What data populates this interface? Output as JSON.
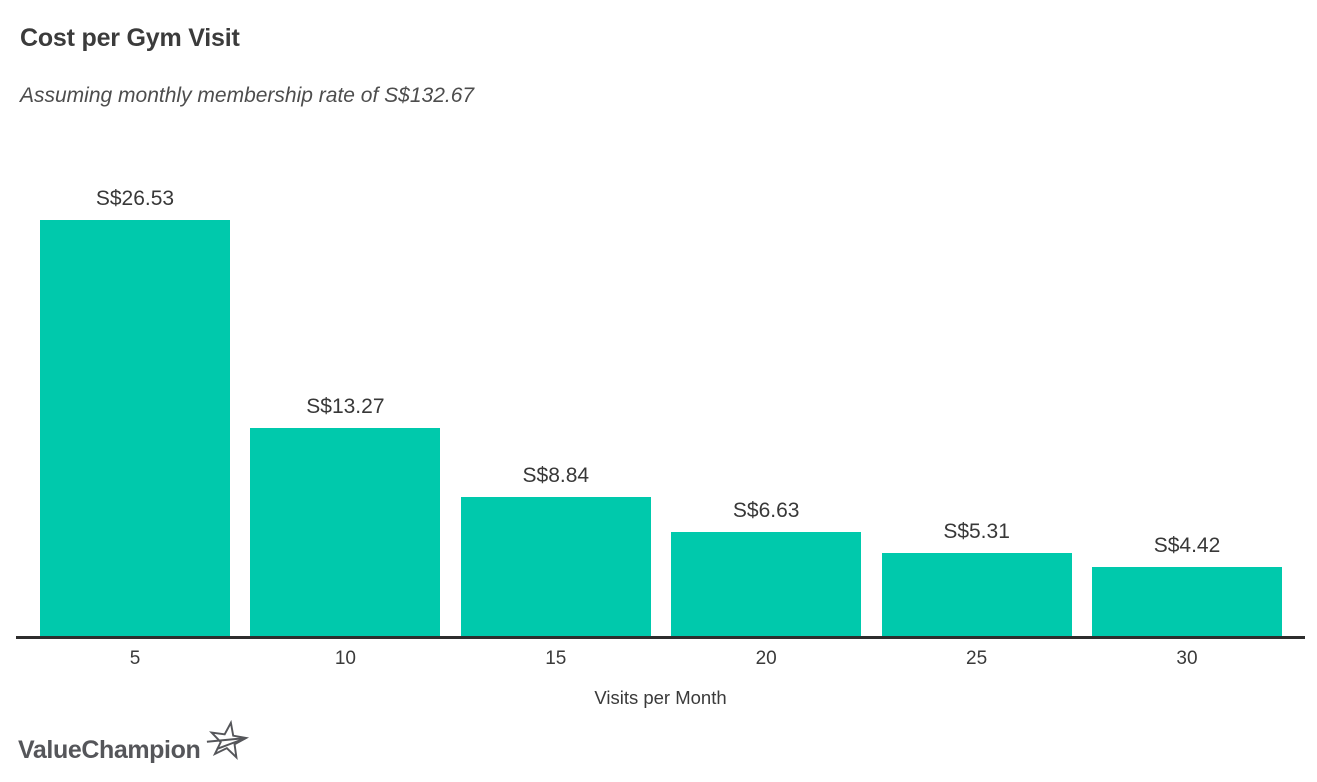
{
  "header": {
    "title": "Cost per Gym Visit",
    "subtitle": "Assuming monthly membership rate of S$132.67"
  },
  "chart_data": {
    "type": "bar",
    "categories": [
      "5",
      "10",
      "15",
      "20",
      "25",
      "30"
    ],
    "values": [
      26.53,
      13.27,
      8.84,
      6.63,
      5.31,
      4.42
    ],
    "bar_labels": [
      "S$26.53",
      "S$13.27",
      "S$8.84",
      "S$6.63",
      "S$5.31",
      "S$4.42"
    ],
    "title": "Cost per Gym Visit",
    "subtitle": "Assuming monthly membership rate of S$132.67",
    "xlabel": "Visits per Month",
    "ylabel": "",
    "ylim": [
      0,
      30
    ],
    "grid": false,
    "legend": false,
    "bar_color": "#00c9ac",
    "axis_color": "#2d2d2d"
  },
  "footer": {
    "brand": "ValueChampion",
    "logo_icon": "star-swoosh-icon",
    "logo_color": "#55565a"
  }
}
